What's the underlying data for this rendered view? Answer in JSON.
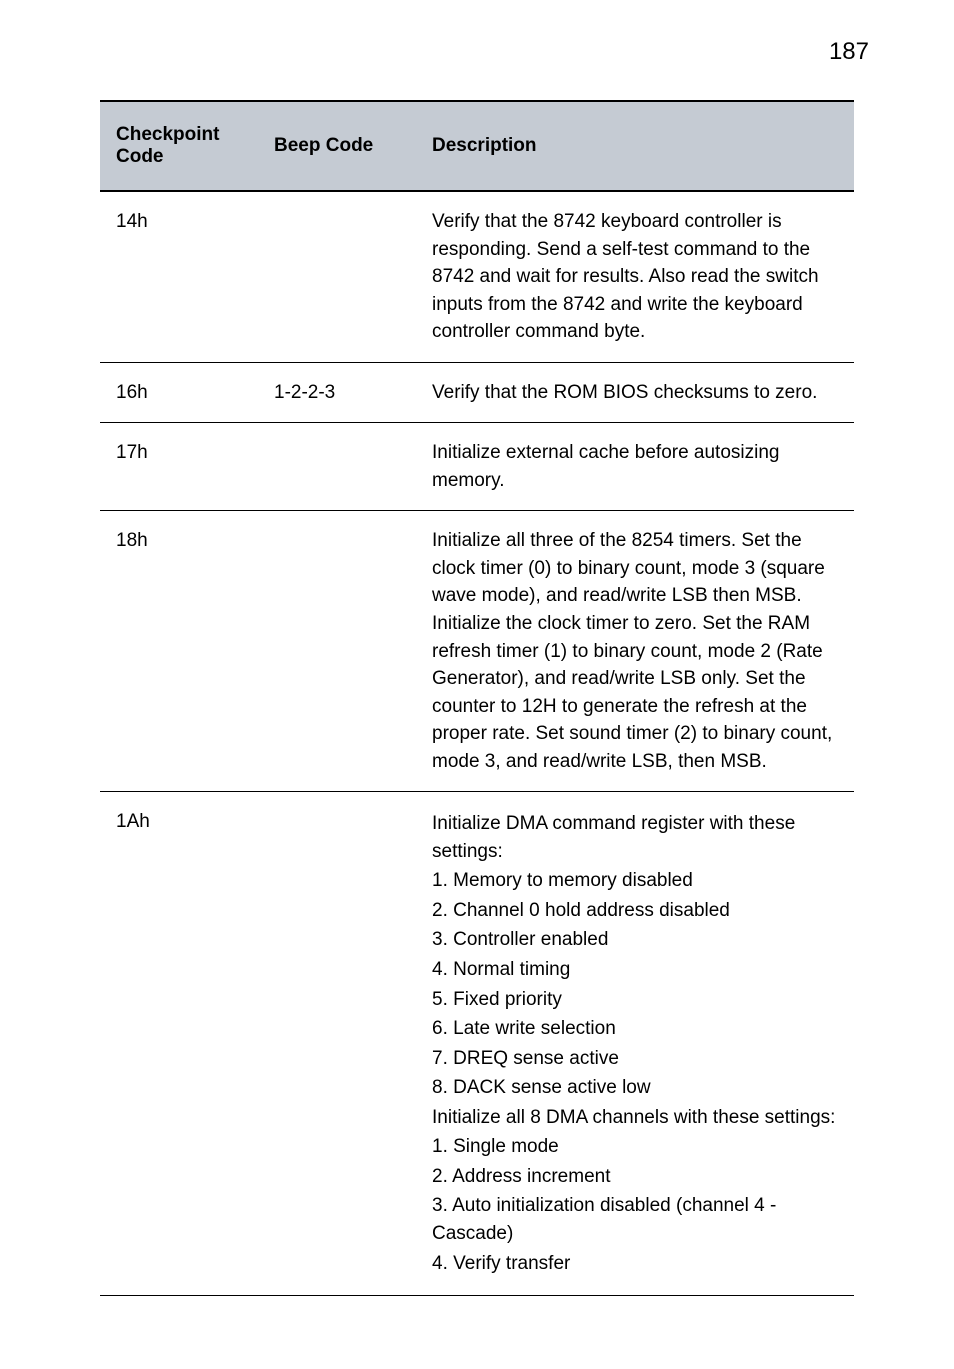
{
  "page_number": "187",
  "table": {
    "header": {
      "col1": "Checkpoint Code",
      "col2": "Beep Code",
      "col3": "Description",
      "bg_color": "#c5cbd3",
      "text_color": "#000000",
      "border_color": "#000000",
      "font_size_pt": 14
    },
    "rows": [
      {
        "code": "14h",
        "beep": "",
        "desc": "Verify that the 8742 keyboard controller is responding. Send a self-test command to the 8742 and wait for results. Also read the switch inputs from the 8742 and write the keyboard controller command byte."
      },
      {
        "code": "16h",
        "beep": "1-2-2-3",
        "desc": "Verify that the ROM BIOS checksums to zero."
      },
      {
        "code": "17h",
        "beep": "",
        "desc": "Initialize external cache before autosizing memory."
      },
      {
        "code": "18h",
        "beep": "",
        "desc": "Initialize all three of the 8254 timers. Set the clock timer (0) to binary count, mode 3 (square wave mode), and read/write LSB then MSB. Initialize the clock timer to zero. Set the RAM refresh timer (1) to binary count, mode 2 (Rate Generator), and read/write LSB only. Set the counter to 12H to generate the refresh at the proper rate. Set sound timer (2) to binary count, mode 3, and read/write LSB, then MSB."
      },
      {
        "code": "1Ah",
        "beep": "",
        "desc_lines": [
          "Initialize DMA command register with these settings:",
          "1. Memory to memory disabled",
          "2. Channel 0 hold address disabled",
          "3. Controller enabled",
          "4. Normal timing",
          "5. Fixed priority",
          "6. Late write selection",
          "7. DREQ sense active",
          "8. DACK sense active low",
          "Initialize all 8 DMA channels with these settings:",
          "1. Single mode",
          "2. Address increment",
          "3. Auto initialization disabled (channel 4 - Cascade)",
          "4. Verify transfer"
        ]
      }
    ],
    "body_font_size_pt": 14,
    "row_border_color": "#000000",
    "background_color": "#ffffff"
  }
}
